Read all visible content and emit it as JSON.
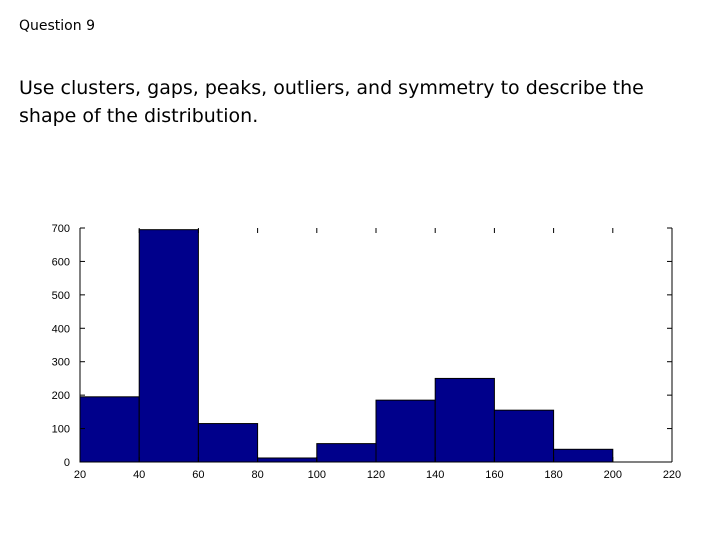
{
  "question_label": "Question 9",
  "prompt": "Use clusters, gaps, peaks, outliers, and symmetry to describe the shape of the distribution.",
  "colors": {
    "bar_fill": "#00008b",
    "bar_stroke": "#000000",
    "axis": "#000000"
  },
  "chart_data": {
    "type": "bar",
    "title": "",
    "xlabel": "",
    "ylabel": "",
    "bins": [
      {
        "start": 20,
        "end": 40,
        "value": 195
      },
      {
        "start": 40,
        "end": 60,
        "value": 695
      },
      {
        "start": 60,
        "end": 80,
        "value": 115
      },
      {
        "start": 80,
        "end": 100,
        "value": 12
      },
      {
        "start": 100,
        "end": 120,
        "value": 55
      },
      {
        "start": 120,
        "end": 140,
        "value": 185
      },
      {
        "start": 140,
        "end": 160,
        "value": 250
      },
      {
        "start": 160,
        "end": 180,
        "value": 155
      },
      {
        "start": 180,
        "end": 200,
        "value": 38
      },
      {
        "start": 200,
        "end": 220,
        "value": 0
      }
    ],
    "xlim": [
      20,
      220
    ],
    "ylim": [
      0,
      700
    ],
    "x_ticks": [
      "20",
      "40",
      "60",
      "80",
      "100",
      "120",
      "140",
      "160",
      "180",
      "200",
      "220"
    ],
    "y_ticks": [
      "0",
      "100",
      "200",
      "300",
      "400",
      "500",
      "600",
      "700"
    ],
    "grid": false,
    "legend": "none"
  }
}
